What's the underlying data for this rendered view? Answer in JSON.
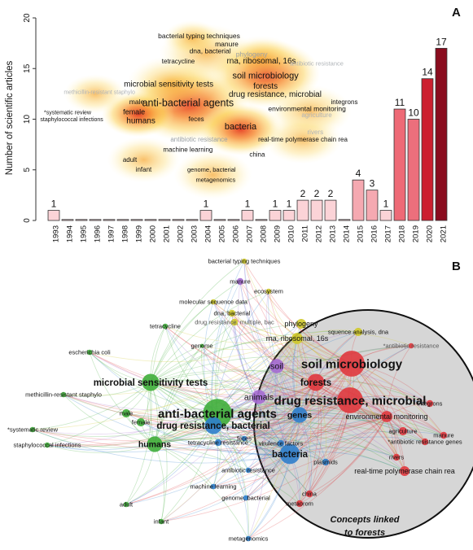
{
  "chart_data": [
    {
      "panel": "A",
      "type": "bar",
      "ylabel": "Number of scientific articles",
      "xlabel": "",
      "ylim": [
        0,
        20
      ],
      "yticks": [
        0,
        5,
        10,
        15,
        20
      ],
      "grid": false,
      "categories": [
        "1993",
        "1994",
        "1995",
        "1996",
        "1997",
        "1998",
        "1999",
        "2000",
        "2001",
        "2002",
        "2003",
        "2004",
        "2005",
        "2006",
        "2007",
        "2008",
        "2009",
        "2010",
        "2011",
        "2012",
        "2013",
        "2014",
        "2015",
        "2016",
        "2017",
        "2018",
        "2019",
        "2020",
        "2021"
      ],
      "values": [
        1,
        0,
        0,
        0,
        0,
        0,
        0,
        0,
        0,
        0,
        0,
        1,
        0,
        0,
        1,
        0,
        1,
        1,
        2,
        2,
        2,
        0,
        4,
        3,
        1,
        11,
        10,
        14,
        17
      ],
      "bar_colors": [
        "#fbd3d7",
        "#fbd3d7",
        "#fbd3d7",
        "#fbd3d7",
        "#fbd3d7",
        "#fbd3d7",
        "#fbd3d7",
        "#fbd3d7",
        "#fbd3d7",
        "#fbd3d7",
        "#fbd3d7",
        "#fbd3d7",
        "#fbd3d7",
        "#fbd3d7",
        "#fbd3d7",
        "#fbd3d7",
        "#fbd3d7",
        "#fbd3d7",
        "#fbd3d7",
        "#fbd3d7",
        "#fbd3d7",
        "#fbd3d7",
        "#f5a9b1",
        "#f5a9b1",
        "#fbd3d7",
        "#ee6a76",
        "#ec6f7c",
        "#cc1f2f",
        "#8a0c1e"
      ],
      "data_labels": [
        "1",
        "",
        "",
        "",
        "",
        "",
        "",
        "",
        "",
        "",
        "",
        "1",
        "",
        "",
        "1",
        "",
        "1",
        "1",
        "2",
        "2",
        "2",
        "",
        "4",
        "3",
        "1",
        "11",
        "10",
        "14",
        "17"
      ],
      "overlay_terms": [
        {
          "text": "bacterial typing techniques",
          "dx": 25,
          "dy": 18,
          "size": 8.5,
          "color": "#111"
        },
        {
          "text": "manure",
          "dx": 27,
          "dy": 17.2,
          "size": 8.5,
          "color": "#111"
        },
        {
          "text": "dna, bacterial",
          "dx": 25.8,
          "dy": 16.5,
          "size": 8.5,
          "color": "#111"
        },
        {
          "text": "phylogeny",
          "dx": 28.8,
          "dy": 16.2,
          "size": 8.5,
          "color": "#9aa0a6"
        },
        {
          "text": "tetracycline",
          "dx": 23.5,
          "dy": 15.5,
          "size": 8,
          "color": "#111"
        },
        {
          "text": "rna, ribosomal, 16s",
          "dx": 29.5,
          "dy": 15.5,
          "size": 10,
          "color": "#111"
        },
        {
          "text": "antibiotic resistance",
          "dx": 33.5,
          "dy": 15.3,
          "size": 7.5,
          "color": "#b0b4b8"
        },
        {
          "text": "microbial sensitivity tests",
          "dx": 22.8,
          "dy": 13.2,
          "size": 10,
          "color": "#111"
        },
        {
          "text": "soil microbiology",
          "dx": 29.8,
          "dy": 14,
          "size": 11,
          "color": "#111"
        },
        {
          "text": "methicillin-resistant staphylo",
          "dx": 17.8,
          "dy": 12.5,
          "size": 7,
          "color": "#b0b4b8"
        },
        {
          "text": "forests",
          "dx": 29.8,
          "dy": 13,
          "size": 10,
          "color": "#111"
        },
        {
          "text": "drug resistance, microbial",
          "dx": 30.5,
          "dy": 12.2,
          "size": 10,
          "color": "#111"
        },
        {
          "text": "integrons",
          "dx": 35.5,
          "dy": 11.5,
          "size": 8,
          "color": "#111"
        },
        {
          "text": "male",
          "dx": 20.5,
          "dy": 11.5,
          "size": 8.5,
          "color": "#111"
        },
        {
          "text": "anti-bacterial agents",
          "dx": 24.2,
          "dy": 11.3,
          "size": 12.5,
          "color": "#111"
        },
        {
          "text": "environmental monitoring",
          "dx": 32.8,
          "dy": 10.8,
          "size": 8.5,
          "color": "#111"
        },
        {
          "text": "*systematic review",
          "dx": 15.5,
          "dy": 10.5,
          "size": 7,
          "color": "#111"
        },
        {
          "text": "female",
          "dx": 20.3,
          "dy": 10.5,
          "size": 9,
          "color": "#111"
        },
        {
          "text": "agriculture",
          "dx": 33.5,
          "dy": 10.2,
          "size": 8,
          "color": "#b0b4b8"
        },
        {
          "text": "staphylococcal infections",
          "dx": 15.8,
          "dy": 9.8,
          "size": 7,
          "color": "#111"
        },
        {
          "text": "humans",
          "dx": 20.8,
          "dy": 9.6,
          "size": 10,
          "color": "#111"
        },
        {
          "text": "feces",
          "dx": 24.8,
          "dy": 9.8,
          "size": 8,
          "color": "#111"
        },
        {
          "text": "bacteria",
          "dx": 28,
          "dy": 9,
          "size": 11,
          "color": "#111"
        },
        {
          "text": "antibiotic resistance",
          "dx": 25,
          "dy": 7.8,
          "size": 8,
          "color": "#9aa0a6"
        },
        {
          "text": "rivers",
          "dx": 33.4,
          "dy": 8.5,
          "size": 8,
          "color": "#b0b4b8"
        },
        {
          "text": "real-time polymerase chain rea",
          "dx": 32.5,
          "dy": 7.8,
          "size": 8,
          "color": "#111"
        },
        {
          "text": "machine learning",
          "dx": 24.2,
          "dy": 6.8,
          "size": 8,
          "color": "#111"
        },
        {
          "text": "china",
          "dx": 29.2,
          "dy": 6.3,
          "size": 8,
          "color": "#111"
        },
        {
          "text": "adult",
          "dx": 20,
          "dy": 5.8,
          "size": 8,
          "color": "#111"
        },
        {
          "text": "genome, bacterial",
          "dx": 25.9,
          "dy": 4.8,
          "size": 7.5,
          "color": "#111"
        },
        {
          "text": "infant",
          "dx": 21,
          "dy": 4.8,
          "size": 8,
          "color": "#111"
        },
        {
          "text": "metagenomics",
          "dx": 26.2,
          "dy": 3.8,
          "size": 7.5,
          "color": "#111"
        }
      ]
    },
    {
      "panel": "B",
      "type": "network",
      "cluster_colors": {
        "red": "#e0393e",
        "green": "#3fae3a",
        "blue": "#2f7ecb",
        "yellow": "#cfc92a",
        "purple": "#a46bd1"
      },
      "highlight_label": [
        "Concepts linked",
        "to forests"
      ],
      "nodes": [
        {
          "id": "bacterial typing techniques",
          "cluster": "yellow",
          "size": 2
        },
        {
          "id": "manure",
          "cluster": "purple",
          "size": 3
        },
        {
          "id": "ecosystem",
          "cluster": "yellow",
          "size": 2
        },
        {
          "id": "molecular sequence data",
          "cluster": "yellow",
          "size": 2
        },
        {
          "id": "dna, bacterial",
          "cluster": "yellow",
          "size": 3
        },
        {
          "id": "drug resistance, multiple, bac",
          "cluster": "yellow",
          "size": 3
        },
        {
          "id": "phylogeny",
          "cluster": "yellow",
          "size": 5
        },
        {
          "id": "squence analysis, dna",
          "cluster": "yellow",
          "size": 4
        },
        {
          "id": "tetracycline",
          "cluster": "green",
          "size": 2
        },
        {
          "id": "rna, ribosomal, 16s",
          "cluster": "yellow",
          "size": 6
        },
        {
          "id": "*antibiotic resistance",
          "cluster": "red",
          "size": 2
        },
        {
          "id": "escherichia coli",
          "cluster": "green",
          "size": 2
        },
        {
          "id": "genome",
          "cluster": "green",
          "size": 1
        },
        {
          "id": "soil",
          "cluster": "purple",
          "size": 8
        },
        {
          "id": "soil microbiology",
          "cluster": "red",
          "size": 16
        },
        {
          "id": "microbial sensitivity tests",
          "cluster": "green",
          "size": 10
        },
        {
          "id": "forests",
          "cluster": "red",
          "size": 10
        },
        {
          "id": "animals",
          "cluster": "purple",
          "size": 8
        },
        {
          "id": "methicillin-resistant staphylo",
          "cluster": "green",
          "size": 2
        },
        {
          "id": "anti-bacterial agents",
          "cluster": "green",
          "size": 18
        },
        {
          "id": "drug resistance, microbial",
          "cluster": "red",
          "size": 16
        },
        {
          "id": "genes",
          "cluster": "blue",
          "size": 9
        },
        {
          "id": "integrons",
          "cluster": "red",
          "size": 3
        },
        {
          "id": "male",
          "cluster": "green",
          "size": 4
        },
        {
          "id": "environmental monitoring",
          "cluster": "red",
          "size": 6
        },
        {
          "id": "*systematic review",
          "cluster": "green",
          "size": 2
        },
        {
          "id": "female",
          "cluster": "green",
          "size": 4
        },
        {
          "id": "tetracycline resistance",
          "cluster": "blue",
          "size": 3
        },
        {
          "id": "drug resistance, bacterial",
          "cluster": "blue",
          "size": 10
        },
        {
          "id": "agriculture",
          "cluster": "red",
          "size": 4
        },
        {
          "id": "manure",
          "cluster": "red",
          "size": 3
        },
        {
          "id": "*antibiotic resistance genes",
          "cluster": "red",
          "size": 3
        },
        {
          "id": "staphylococcal infections",
          "cluster": "green",
          "size": 2
        },
        {
          "id": "humans",
          "cluster": "green",
          "size": 9
        },
        {
          "id": "feces",
          "cluster": "blue",
          "size": 2
        },
        {
          "id": "virulence factors",
          "cluster": "blue",
          "size": 3
        },
        {
          "id": "bacteria",
          "cluster": "blue",
          "size": 12
        },
        {
          "id": "rivers",
          "cluster": "red",
          "size": 3
        },
        {
          "id": "plasmids",
          "cluster": "blue",
          "size": 3
        },
        {
          "id": "real-time polymerase chain rea",
          "cluster": "red",
          "size": 5
        },
        {
          "id": "antibiotic resistance",
          "cluster": "blue",
          "size": 2
        },
        {
          "id": "machine learning",
          "cluster": "blue",
          "size": 2
        },
        {
          "id": "china",
          "cluster": "red",
          "size": 3
        },
        {
          "id": "metaorom",
          "cluster": "red",
          "size": 3
        },
        {
          "id": "adult",
          "cluster": "green",
          "size": 2
        },
        {
          "id": "genome, bacterial",
          "cluster": "blue",
          "size": 2
        },
        {
          "id": "infant",
          "cluster": "green",
          "size": 2
        },
        {
          "id": "metagenomics",
          "cluster": "blue",
          "size": 2
        }
      ]
    }
  ]
}
